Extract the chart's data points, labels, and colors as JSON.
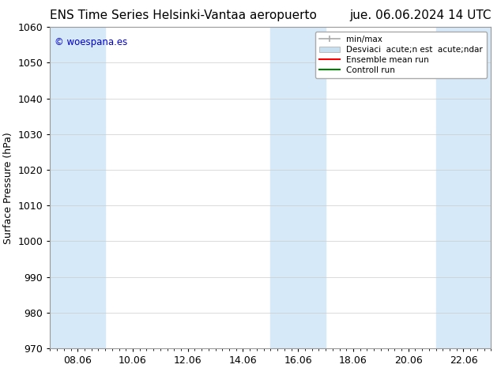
{
  "title_left": "ENS Time Series Helsinki-Vantaa aeropuerto",
  "title_right": "jue. 06.06.2024 14 UTC",
  "ylabel": "Surface Pressure (hPa)",
  "watermark": "© woespana.es",
  "ylim": [
    970,
    1060
  ],
  "yticks": [
    970,
    980,
    990,
    1000,
    1010,
    1020,
    1030,
    1040,
    1050,
    1060
  ],
  "xtick_labels": [
    "08.06",
    "10.06",
    "12.06",
    "14.06",
    "16.06",
    "18.06",
    "20.06",
    "22.06"
  ],
  "xlim_start": 0.0,
  "xlim_end": 1.0,
  "x_band_coords": [
    {
      "xmin": 0.09,
      "xmax": 0.27
    },
    {
      "xmin": 0.55,
      "xmax": 0.73
    },
    {
      "xmin": 0.92,
      "xmax": 1.0
    }
  ],
  "shade_color": "#d6e9f8",
  "bg_color": "#ffffff",
  "grid_color": "#cccccc",
  "legend_label_minmax": "min/max",
  "legend_label_std": "Desviaci  acute;n est  acute;ndar",
  "legend_label_ensemble": "Ensemble mean run",
  "legend_label_control": "Controll run",
  "legend_color_minmax": "#aaaaaa",
  "legend_color_std": "#c8dff0",
  "legend_color_ensemble": "#ff0000",
  "legend_color_control": "#008000",
  "title_fontsize": 11,
  "ylabel_fontsize": 9,
  "watermark_color": "#0000cc",
  "tick_label_fontsize": 9,
  "fig_width": 6.34,
  "fig_height": 4.9,
  "dpi": 100
}
